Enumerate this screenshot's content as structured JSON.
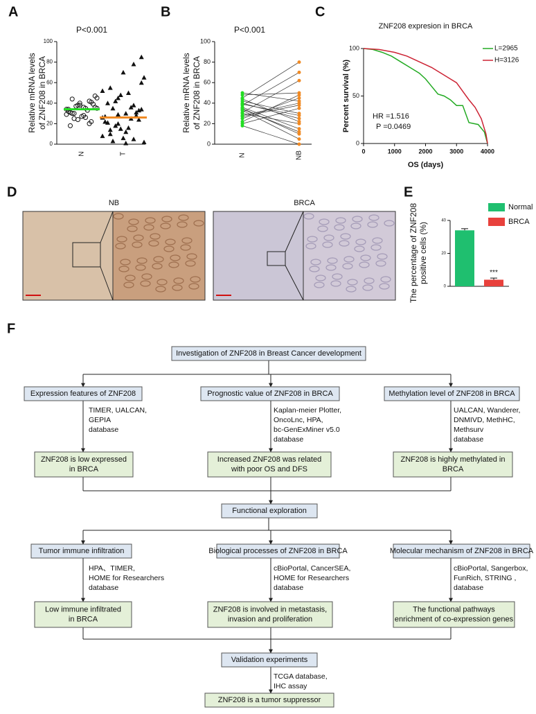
{
  "panel_labels": [
    "A",
    "B",
    "C",
    "D",
    "E",
    "F"
  ],
  "chart_data": [
    {
      "type": "dot",
      "annotation": "P<0.001",
      "y_label": [
        "Relative mRNA levels",
        "of ZNF208 in BRCA"
      ],
      "categories": [
        "N",
        "T"
      ],
      "markers": [
        "circle",
        "triangle"
      ],
      "values": [
        [
          34,
          30,
          38,
          28,
          42,
          36,
          32,
          25,
          40,
          35,
          22,
          45,
          31,
          37,
          27,
          33,
          39,
          29,
          44,
          24,
          36,
          20,
          47,
          34,
          30,
          38,
          26,
          41,
          35,
          18
        ],
        [
          26,
          10,
          45,
          30,
          5,
          60,
          22,
          35,
          15,
          50,
          28,
          2,
          40,
          18,
          70,
          25,
          33,
          8,
          55,
          20,
          12,
          38,
          85,
          27,
          3,
          48,
          16,
          31,
          65,
          21,
          42,
          6,
          36,
          24,
          52,
          14,
          29,
          1,
          78,
          34
        ]
      ],
      "means": [
        34,
        26
      ],
      "mean_colors": [
        "#22dd22",
        "#f08a24"
      ],
      "ylim": [
        0,
        100
      ],
      "yticks": [
        0,
        20,
        40,
        60,
        80,
        100
      ]
    },
    {
      "type": "paired",
      "annotation": "P<0.001",
      "y_label": [
        "Relative mRNA levels",
        "of ZNF208 in BRCA"
      ],
      "categories": [
        "N",
        "NB"
      ],
      "colors": [
        "#22dd22",
        "#f08a24"
      ],
      "values": [
        [
          45,
          38,
          30,
          25,
          48,
          35,
          20,
          42,
          33,
          28,
          40,
          22,
          36,
          31,
          44,
          27,
          50,
          18,
          39,
          34
        ],
        [
          80,
          70,
          20,
          45,
          50,
          10,
          35,
          30,
          5,
          40,
          25,
          48,
          15,
          62,
          22,
          38,
          42,
          0,
          28,
          12
        ]
      ],
      "ylim": [
        0,
        100
      ],
      "yticks": [
        0,
        20,
        40,
        60,
        80,
        100
      ]
    },
    {
      "type": "survival",
      "title": "ZNF208 expresion in BRCA",
      "x_label": "OS (days)",
      "y_label": "Percent survival (%)",
      "annotations": [
        "HR =1.516",
        "P =0.0469"
      ],
      "xlim": [
        0,
        4000
      ],
      "xticks": [
        0,
        1000,
        2000,
        3000,
        4000
      ],
      "ylim": [
        0,
        100
      ],
      "yticks": [
        0,
        50,
        100
      ],
      "series": [
        {
          "name": "L=2965",
          "color": "#22aa22",
          "x": [
            0,
            300,
            600,
            900,
            1200,
            1500,
            1800,
            2000,
            2200,
            2400,
            2600,
            2800,
            3000,
            3200,
            3400,
            3700,
            3900,
            4000
          ],
          "values": [
            100,
            99,
            96,
            92,
            86,
            80,
            74,
            68,
            60,
            52,
            50,
            46,
            40,
            40,
            22,
            20,
            12,
            0
          ]
        },
        {
          "name": "H=3126",
          "color": "#cc2233",
          "x": [
            0,
            500,
            1000,
            1400,
            1800,
            2200,
            2500,
            2800,
            3000,
            3200,
            3400,
            3600,
            3800,
            3950,
            4000
          ],
          "values": [
            100,
            99,
            96,
            92,
            86,
            80,
            74,
            68,
            64,
            55,
            46,
            38,
            26,
            10,
            0
          ]
        }
      ]
    },
    {
      "type": "bar",
      "y_label": [
        "The percentage of ZNF208",
        "positive cells (%)"
      ],
      "categories": [
        "Normal",
        "BRCA"
      ],
      "values": [
        34,
        4
      ],
      "errors": [
        1,
        1
      ],
      "colors": [
        "#1fbf6f",
        "#e8413c"
      ],
      "annotation": "***",
      "ylim": [
        0,
        40
      ],
      "yticks": [
        0,
        20,
        40
      ]
    }
  ],
  "images": {
    "labels": [
      "NB",
      "BRCA"
    ]
  },
  "flowchart": {
    "nodes": [
      {
        "style": "blue",
        "lines": [
          "Investigation of ZNF208 in Breast Cancer development"
        ]
      },
      {
        "style": "blue",
        "lines": [
          "Expression features of ZNF208"
        ]
      },
      {
        "style": "blue",
        "lines": [
          "Prognostic value of ZNF208 in BRCA"
        ]
      },
      {
        "style": "blue",
        "lines": [
          "Methylation level of ZNF208 in BRCA"
        ]
      },
      {
        "style": "plain",
        "lines": [
          "TIMER, UALCAN,",
          "GEPIA",
          "database"
        ]
      },
      {
        "style": "plain",
        "lines": [
          "Kaplan-meier Plotter,",
          "OncoLnc, HPA,",
          "bc-GenExMiner v5.0",
          "database"
        ]
      },
      {
        "style": "plain",
        "lines": [
          "UALCAN, Wanderer,",
          "DNMIVD, MethHC,",
          "Methsurv",
          "database"
        ]
      },
      {
        "style": "green",
        "lines": [
          "ZNF208 is low expressed",
          "in BRCA"
        ]
      },
      {
        "style": "green",
        "lines": [
          "Increased ZNF208 was related",
          "with poor OS and DFS"
        ]
      },
      {
        "style": "green",
        "lines": [
          "ZNF208 is highly methylated in",
          "BRCA"
        ]
      },
      {
        "style": "blue",
        "lines": [
          "Functional exploration"
        ]
      },
      {
        "style": "blue",
        "lines": [
          "Tumor immune infiltration"
        ]
      },
      {
        "style": "blue",
        "lines": [
          "Biological processes of ZNF208 in BRCA"
        ]
      },
      {
        "style": "blue",
        "lines": [
          "Molecular mechanism of ZNF208 in BRCA"
        ]
      },
      {
        "style": "plain",
        "lines": [
          "HPA、TIMER,",
          "HOME for Researchers",
          "database"
        ]
      },
      {
        "style": "plain",
        "lines": [
          "cBioPortal, CancerSEA,",
          "HOME for Researchers",
          "database"
        ]
      },
      {
        "style": "plain",
        "lines": [
          "cBioPortal, Sangerbox,",
          "FunRich, STRING ,",
          "database"
        ]
      },
      {
        "style": "green",
        "lines": [
          "Low immune infiltrated",
          "in BRCA"
        ]
      },
      {
        "style": "green",
        "lines": [
          "ZNF208 is involved in metastasis,",
          "invasion and proliferation"
        ]
      },
      {
        "style": "green",
        "lines": [
          "The functional pathways",
          "enrichment of co-expression genes"
        ]
      },
      {
        "style": "blue",
        "lines": [
          "Validation experiments"
        ]
      },
      {
        "style": "plain",
        "lines": [
          "TCGA database,",
          "IHC assay"
        ]
      },
      {
        "style": "green",
        "lines": [
          "ZNF208 is a tumor suppressor"
        ]
      }
    ]
  }
}
